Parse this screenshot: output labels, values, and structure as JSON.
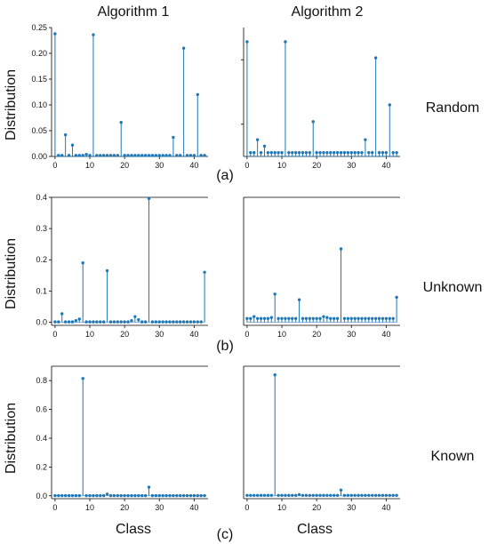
{
  "labels": {
    "col_titles": [
      "Algorithm 1",
      "Algorithm 2"
    ],
    "row_labels": [
      "Random",
      "Unknown",
      "Known"
    ],
    "panel_tags": [
      "(a)",
      "(b)",
      "(c)"
    ],
    "ylabel": "Distribution",
    "xlabel": "Class"
  },
  "colors": {
    "stem": "#1f77b4",
    "axis": "#000000",
    "accent_dot": "#c0392b"
  },
  "chart_data": [
    {
      "type": "scatter",
      "style": "stem",
      "row": "Random",
      "column": "Algorithm 1",
      "xlim": [
        -1,
        44
      ],
      "ylim": [
        0,
        0.25
      ],
      "xticks": [
        0,
        10,
        20,
        30,
        40
      ],
      "yticks": [
        0.0,
        0.05,
        0.1,
        0.15,
        0.2,
        0.25
      ],
      "ytick_labels": [
        "0.00",
        "0.05",
        "0.10",
        "0.15",
        "0.20",
        "0.25"
      ],
      "x": [
        0,
        1,
        2,
        3,
        4,
        5,
        6,
        7,
        8,
        9,
        10,
        11,
        12,
        13,
        14,
        15,
        16,
        17,
        18,
        19,
        20,
        21,
        22,
        23,
        24,
        25,
        26,
        27,
        28,
        29,
        30,
        31,
        32,
        33,
        34,
        35,
        36,
        37,
        38,
        39,
        40,
        41,
        42,
        43
      ],
      "values": [
        0.238,
        0.002,
        0.002,
        0.042,
        0.002,
        0.022,
        0.002,
        0.002,
        0.002,
        0.004,
        0.002,
        0.236,
        0.002,
        0.002,
        0.002,
        0.002,
        0.002,
        0.002,
        0.002,
        0.066,
        0.002,
        0.002,
        0.002,
        0.002,
        0.002,
        0.002,
        0.002,
        0.002,
        0.002,
        0.002,
        0.002,
        0.002,
        0.002,
        0.002,
        0.037,
        0.002,
        0.002,
        0.21,
        0.002,
        0.002,
        0.002,
        0.12,
        0.002,
        0.002
      ]
    },
    {
      "type": "scatter",
      "style": "stem",
      "row": "Random",
      "column": "Algorithm 2",
      "xlim": [
        -1,
        44
      ],
      "ylim": [
        0,
        0.2
      ],
      "xticks": [
        0,
        10,
        20,
        30,
        40
      ],
      "yticks": [
        0.05,
        0.15
      ],
      "ytick_labels": [
        "",
        ""
      ],
      "x": [
        0,
        1,
        2,
        3,
        4,
        5,
        6,
        7,
        8,
        9,
        10,
        11,
        12,
        13,
        14,
        15,
        16,
        17,
        18,
        19,
        20,
        21,
        22,
        23,
        24,
        25,
        26,
        27,
        28,
        29,
        30,
        31,
        32,
        33,
        34,
        35,
        36,
        37,
        38,
        39,
        40,
        41,
        42,
        43
      ],
      "values": [
        0.178,
        0.006,
        0.006,
        0.026,
        0.006,
        0.016,
        0.006,
        0.006,
        0.006,
        0.006,
        0.006,
        0.178,
        0.006,
        0.006,
        0.006,
        0.006,
        0.006,
        0.006,
        0.006,
        0.054,
        0.006,
        0.006,
        0.006,
        0.006,
        0.006,
        0.006,
        0.006,
        0.006,
        0.006,
        0.006,
        0.006,
        0.006,
        0.006,
        0.006,
        0.026,
        0.006,
        0.006,
        0.153,
        0.006,
        0.006,
        0.006,
        0.08,
        0.006,
        0.006
      ]
    },
    {
      "type": "scatter",
      "style": "stem",
      "row": "Unknown",
      "column": "Algorithm 1",
      "xlim": [
        -1,
        44
      ],
      "ylim": [
        -0.01,
        0.4
      ],
      "xticks": [
        0,
        10,
        20,
        30,
        40
      ],
      "yticks": [
        0.0,
        0.1,
        0.2,
        0.3,
        0.4
      ],
      "ytick_labels": [
        "0.0",
        "0.1",
        "0.2",
        "0.3",
        "0.4"
      ],
      "x": [
        0,
        1,
        2,
        3,
        4,
        5,
        6,
        7,
        8,
        9,
        10,
        11,
        12,
        13,
        14,
        15,
        16,
        17,
        18,
        19,
        20,
        21,
        22,
        23,
        24,
        25,
        26,
        27,
        28,
        29,
        30,
        31,
        32,
        33,
        34,
        35,
        36,
        37,
        38,
        39,
        40,
        41,
        42,
        43
      ],
      "values": [
        0.001,
        0.001,
        0.027,
        0.001,
        0.001,
        0.001,
        0.005,
        0.01,
        0.19,
        0.001,
        0.001,
        0.001,
        0.001,
        0.001,
        0.001,
        0.165,
        0.001,
        0.001,
        0.001,
        0.001,
        0.001,
        0.001,
        0.005,
        0.018,
        0.008,
        0.001,
        0.001,
        0.396,
        0.001,
        0.001,
        0.001,
        0.001,
        0.001,
        0.001,
        0.001,
        0.001,
        0.001,
        0.001,
        0.001,
        0.001,
        0.001,
        0.001,
        0.001,
        0.16
      ]
    },
    {
      "type": "scatter",
      "style": "stem",
      "row": "Unknown",
      "column": "Algorithm 2",
      "xlim": [
        -1,
        44
      ],
      "ylim": [
        -0.01,
        0.4
      ],
      "xticks": [
        0,
        10,
        20,
        30,
        40
      ],
      "yticks": [],
      "ytick_labels": [],
      "x": [
        0,
        1,
        2,
        3,
        4,
        5,
        6,
        7,
        8,
        9,
        10,
        11,
        12,
        13,
        14,
        15,
        16,
        17,
        18,
        19,
        20,
        21,
        22,
        23,
        24,
        25,
        26,
        27,
        28,
        29,
        30,
        31,
        32,
        33,
        34,
        35,
        36,
        37,
        38,
        39,
        40,
        41,
        42,
        43
      ],
      "values": [
        0.012,
        0.012,
        0.018,
        0.012,
        0.012,
        0.012,
        0.012,
        0.015,
        0.09,
        0.012,
        0.012,
        0.012,
        0.012,
        0.012,
        0.012,
        0.072,
        0.012,
        0.012,
        0.012,
        0.012,
        0.012,
        0.012,
        0.018,
        0.015,
        0.012,
        0.012,
        0.012,
        0.235,
        0.012,
        0.012,
        0.012,
        0.012,
        0.012,
        0.012,
        0.012,
        0.012,
        0.012,
        0.012,
        0.012,
        0.012,
        0.012,
        0.012,
        0.012,
        0.08
      ]
    },
    {
      "type": "scatter",
      "style": "stem",
      "row": "Known",
      "column": "Algorithm 1",
      "xlim": [
        -1,
        44
      ],
      "ylim": [
        -0.02,
        0.9
      ],
      "xticks": [
        0,
        10,
        20,
        30,
        40
      ],
      "yticks": [
        0.0,
        0.2,
        0.4,
        0.6,
        0.8
      ],
      "ytick_labels": [
        "0.0",
        "0.2",
        "0.4",
        "0.6",
        "0.8"
      ],
      "x": [
        0,
        1,
        2,
        3,
        4,
        5,
        6,
        7,
        8,
        9,
        10,
        11,
        12,
        13,
        14,
        15,
        16,
        17,
        18,
        19,
        20,
        21,
        22,
        23,
        24,
        25,
        26,
        27,
        28,
        29,
        30,
        31,
        32,
        33,
        34,
        35,
        36,
        37,
        38,
        39,
        40,
        41,
        42,
        43
      ],
      "values": [
        0.001,
        0.001,
        0.001,
        0.001,
        0.001,
        0.001,
        0.001,
        0.001,
        0.815,
        0.001,
        0.001,
        0.001,
        0.001,
        0.001,
        0.001,
        0.012,
        0.001,
        0.001,
        0.001,
        0.001,
        0.001,
        0.001,
        0.001,
        0.001,
        0.001,
        0.001,
        0.001,
        0.06,
        0.001,
        0.001,
        0.001,
        0.001,
        0.001,
        0.001,
        0.001,
        0.001,
        0.001,
        0.001,
        0.001,
        0.001,
        0.001,
        0.001,
        0.001,
        0.001
      ]
    },
    {
      "type": "scatter",
      "style": "stem",
      "row": "Known",
      "column": "Algorithm 2",
      "xlim": [
        -1,
        44
      ],
      "ylim": [
        -0.02,
        0.9
      ],
      "xticks": [
        0,
        10,
        20,
        30,
        40
      ],
      "yticks": [],
      "ytick_labels": [],
      "x": [
        0,
        1,
        2,
        3,
        4,
        5,
        6,
        7,
        8,
        9,
        10,
        11,
        12,
        13,
        14,
        15,
        16,
        17,
        18,
        19,
        20,
        21,
        22,
        23,
        24,
        25,
        26,
        27,
        28,
        29,
        30,
        31,
        32,
        33,
        34,
        35,
        36,
        37,
        38,
        39,
        40,
        41,
        42,
        43
      ],
      "values": [
        0.003,
        0.003,
        0.003,
        0.003,
        0.003,
        0.003,
        0.003,
        0.003,
        0.84,
        0.003,
        0.003,
        0.003,
        0.003,
        0.003,
        0.003,
        0.008,
        0.003,
        0.003,
        0.003,
        0.003,
        0.003,
        0.003,
        0.003,
        0.003,
        0.003,
        0.003,
        0.003,
        0.04,
        0.003,
        0.003,
        0.003,
        0.003,
        0.003,
        0.003,
        0.003,
        0.003,
        0.003,
        0.003,
        0.003,
        0.003,
        0.003,
        0.003,
        0.003,
        0.003
      ]
    }
  ]
}
